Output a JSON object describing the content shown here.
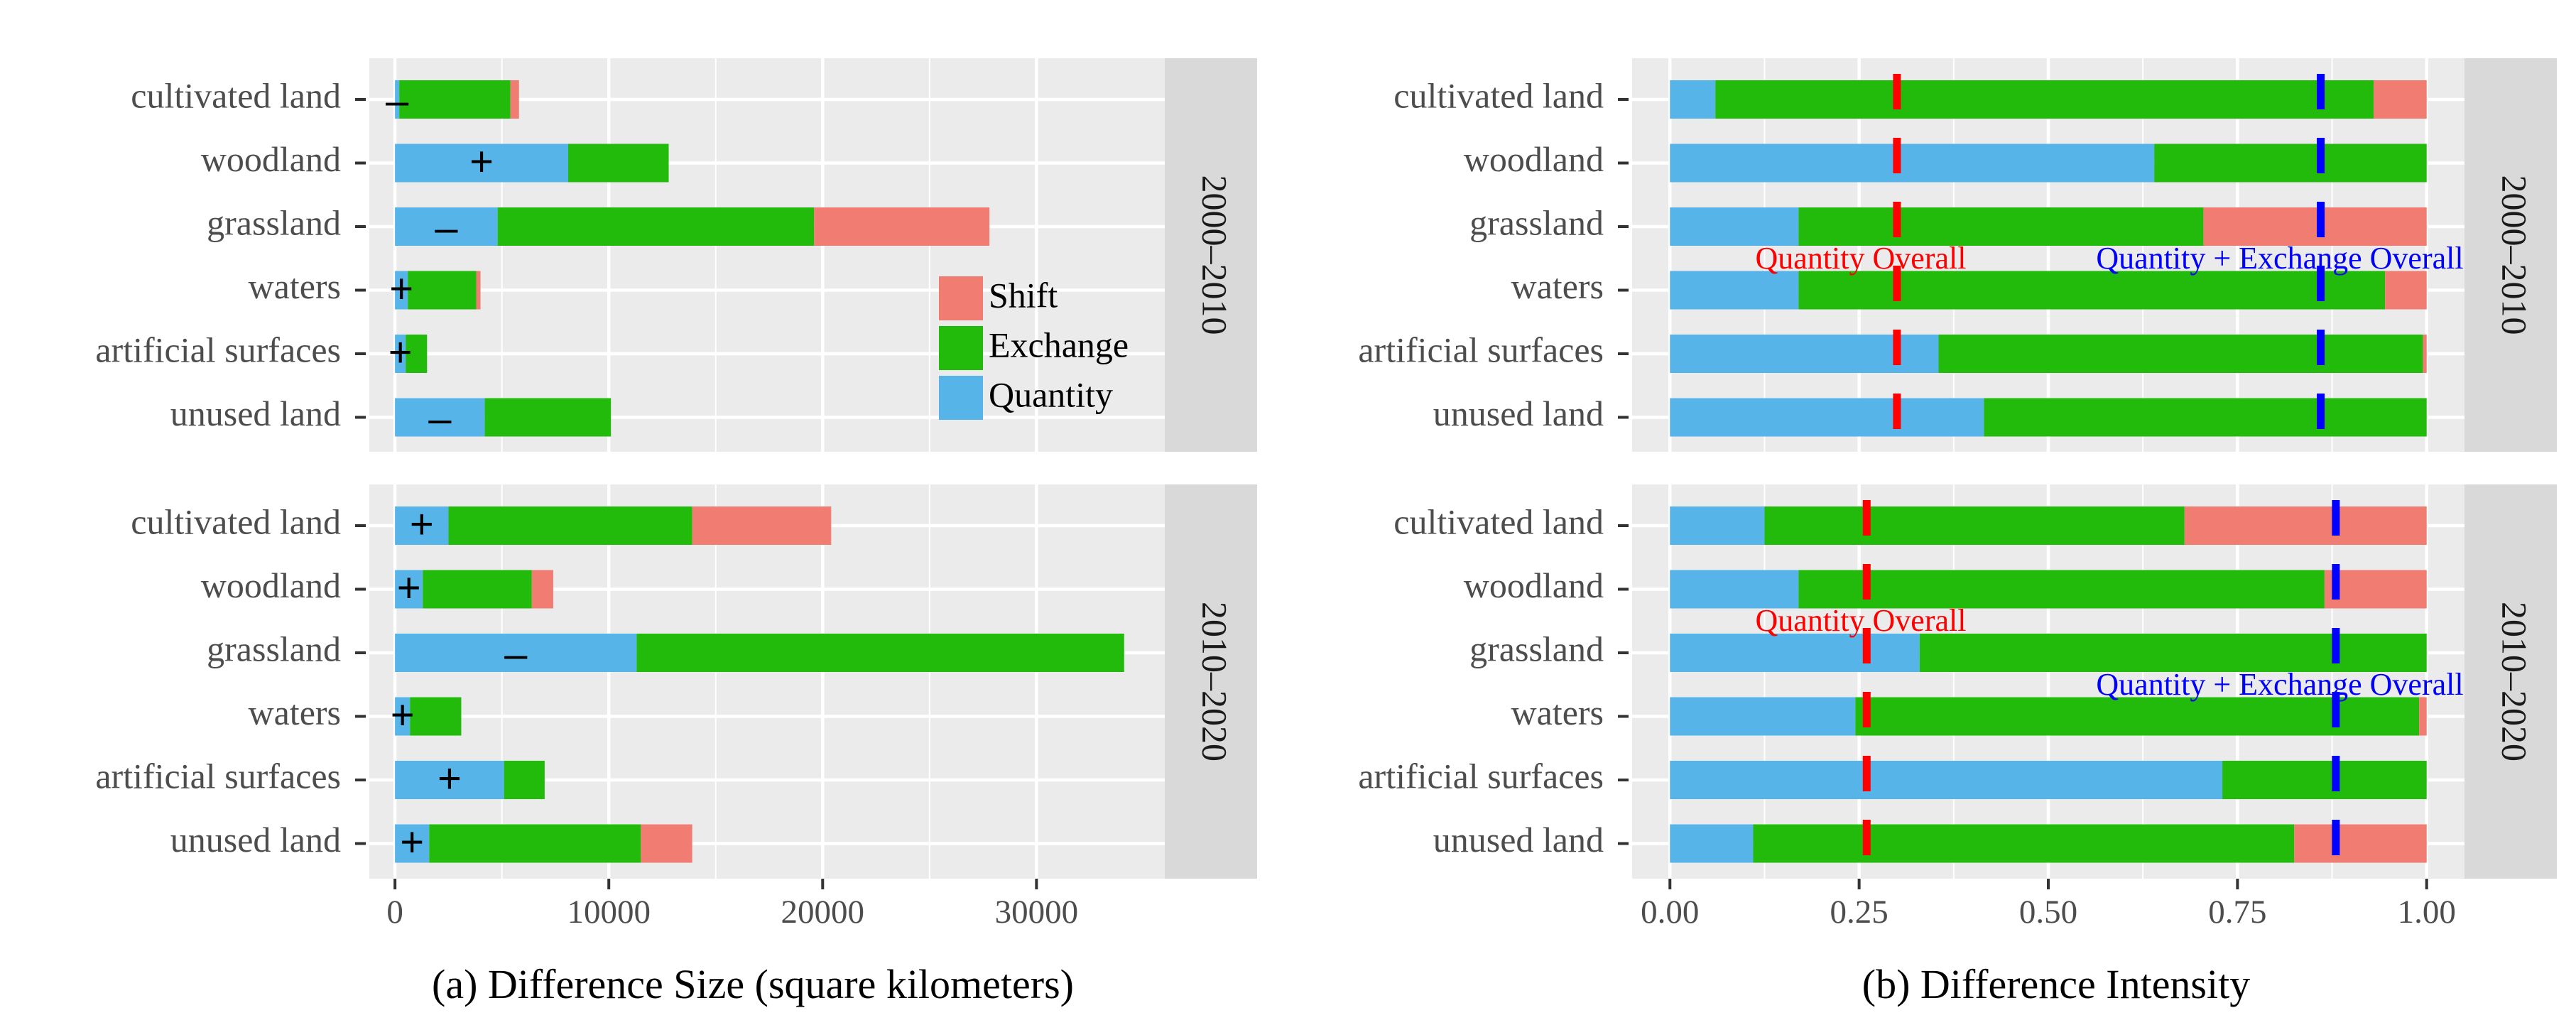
{
  "colors": {
    "Quantity": "#56b4e9",
    "Exchange": "#22bb0c",
    "Shift": "#f07c72",
    "panel_bg": "#ebebeb",
    "strip_bg": "#d9d9d9",
    "grid": "#ffffff",
    "quantity_line": "#ff0000",
    "qe_line": "#0000ff"
  },
  "legend": {
    "entries": [
      "Shift",
      "Exchange",
      "Quantity"
    ]
  },
  "chart_data": [
    {
      "id": "a",
      "type": "bar",
      "orientation": "horizontal",
      "stacked": true,
      "title": "",
      "xlabel": "(a) Difference Size (square kilometers)",
      "ylabel": "",
      "xlim": [
        -1200,
        36000
      ],
      "xticks": [
        0,
        10000,
        20000,
        30000
      ],
      "xtick_labels": [
        "0",
        "10000",
        "20000",
        "30000"
      ],
      "categories": [
        "cultivated land",
        "woodland",
        "grassland",
        "waters",
        "artificial surfaces",
        "unused land"
      ],
      "facets": [
        {
          "label": "2000–2010",
          "series": [
            {
              "name": "Quantity",
              "values": [
                200,
                8100,
                4800,
                600,
                500,
                4200
              ]
            },
            {
              "name": "Exchange",
              "values": [
                5200,
                4700,
                14800,
                3200,
                1000,
                5900
              ]
            },
            {
              "name": "Shift",
              "values": [
                400,
                0,
                8200,
                200,
                0,
                0
              ]
            }
          ],
          "direction_marks": [
            "-",
            "+",
            "-",
            "+",
            "+",
            "-"
          ]
        },
        {
          "label": "2010–2020",
          "series": [
            {
              "name": "Quantity",
              "values": [
                2500,
                1300,
                11300,
                700,
                5100,
                1600
              ]
            },
            {
              "name": "Exchange",
              "values": [
                11400,
                5100,
                22800,
                2400,
                1900,
                9900
              ]
            },
            {
              "name": "Shift",
              "values": [
                6500,
                1000,
                0,
                0,
                0,
                2400
              ]
            }
          ],
          "direction_marks": [
            "+",
            "+",
            "-",
            "+",
            "+",
            "+"
          ]
        }
      ]
    },
    {
      "id": "b",
      "type": "bar",
      "orientation": "horizontal",
      "stacked": true,
      "title": "",
      "xlabel": "(b) Difference Intensity",
      "ylabel": "",
      "xlim": [
        -0.05,
        1.05
      ],
      "xticks": [
        0,
        0.25,
        0.5,
        0.75,
        1
      ],
      "xtick_labels": [
        "0.00",
        "0.25",
        "0.50",
        "0.75",
        "1.00"
      ],
      "categories": [
        "cultivated land",
        "woodland",
        "grassland",
        "waters",
        "artificial surfaces",
        "unused land"
      ],
      "facets": [
        {
          "label": "2000–2010",
          "series": [
            {
              "name": "Quantity",
              "values": [
                0.06,
                0.64,
                0.17,
                0.17,
                0.355,
                0.415
              ]
            },
            {
              "name": "Exchange",
              "values": [
                0.87,
                0.36,
                0.535,
                0.775,
                0.64,
                0.585
              ]
            },
            {
              "name": "Shift",
              "values": [
                0.07,
                0.0,
                0.295,
                0.055,
                0.005,
                0.0
              ]
            }
          ],
          "reference_lines": [
            {
              "name": "Quantity Overall",
              "value": 0.3,
              "color": "#ff0000",
              "label": "Quantity Overall"
            },
            {
              "name": "Quantity + Exchange Overall",
              "value": 0.86,
              "color": "#0000ff",
              "label": "Quantity + Exchange Overall"
            }
          ]
        },
        {
          "label": "2010–2020",
          "series": [
            {
              "name": "Quantity",
              "values": [
                0.125,
                0.17,
                0.33,
                0.245,
                0.73,
                0.11
              ]
            },
            {
              "name": "Exchange",
              "values": [
                0.555,
                0.695,
                0.67,
                0.745,
                0.27,
                0.715
              ]
            },
            {
              "name": "Shift",
              "values": [
                0.32,
                0.135,
                0.0,
                0.01,
                0.0,
                0.175
              ]
            }
          ],
          "reference_lines": [
            {
              "name": "Quantity Overall",
              "value": 0.26,
              "color": "#ff0000",
              "label": "Quantity Overall"
            },
            {
              "name": "Quantity + Exchange Overall",
              "value": 0.88,
              "color": "#0000ff",
              "label": "Quantity + Exchange Overall"
            }
          ]
        }
      ]
    }
  ]
}
